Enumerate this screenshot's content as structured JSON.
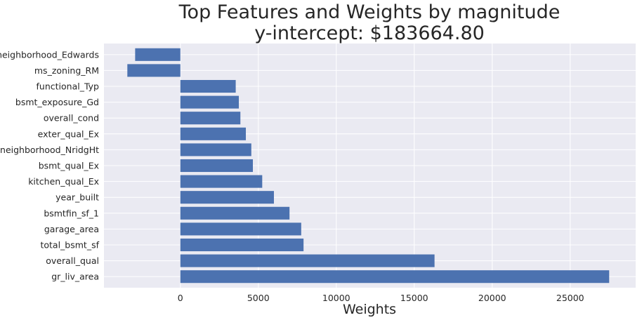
{
  "chart_data": {
    "type": "bar",
    "orientation": "horizontal",
    "title_lines": [
      "Top Features and Weights by magnitude",
      "y-intercept: $183664.80"
    ],
    "xlabel": "Weights",
    "ylabel": "",
    "categories": [
      "neighborhood_Edwards",
      "ms_zoning_RM",
      "functional_Typ",
      "bsmt_exposure_Gd",
      "overall_cond",
      "exter_qual_Ex",
      "neighborhood_NridgHt",
      "bsmt_qual_Ex",
      "kitchen_qual_Ex",
      "year_built",
      "bsmtfin_sf_1",
      "garage_area",
      "total_bsmt_sf",
      "overall_qual",
      "gr_liv_area"
    ],
    "values": [
      -2900,
      -3400,
      3550,
      3750,
      3850,
      4200,
      4550,
      4650,
      5250,
      6000,
      7000,
      7750,
      7900,
      16300,
      27500
    ],
    "xlim": [
      -4900,
      29200
    ],
    "xticks": [
      0,
      5000,
      10000,
      15000,
      20000,
      25000
    ],
    "grid": true,
    "colors": {
      "bar": "#4c72b0",
      "background": "#eaeaf2",
      "grid": "#ffffff",
      "text": "#262626"
    }
  }
}
